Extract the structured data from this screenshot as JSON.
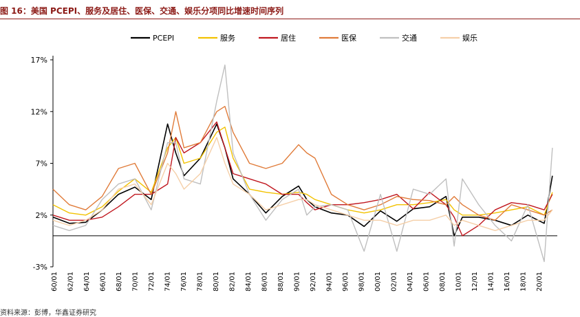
{
  "title": "图 16：美国 PCEPI、服务及居住、医保、交通、娱乐分项同比增速时间序列",
  "source": "资料来源：彭博，华鑫证券研究",
  "chart_data": {
    "type": "line",
    "title": "图 16：美国 PCEPI、服务及居住、医保、交通、娱乐分项同比增速时间序列",
    "xlabel": "",
    "ylabel": "",
    "x": [
      1960,
      1962,
      1964,
      1966,
      1968,
      1970,
      1972,
      1974,
      1975,
      1976,
      1978,
      1980,
      1981,
      1982,
      1984,
      1986,
      1988,
      1990,
      1991,
      1992,
      1994,
      1996,
      1998,
      2000,
      2002,
      2004,
      2006,
      2008,
      2009,
      2010,
      2012,
      2014,
      2016,
      2018,
      2020,
      2021
    ],
    "xlim": [
      1960,
      2021.6
    ],
    "ylim": [
      -3,
      17
    ],
    "yticks": [
      17,
      12,
      7,
      2,
      -3
    ],
    "ytick_labels": [
      "17%",
      "12%",
      "7%",
      "2%",
      "-3%"
    ],
    "xtick_labels": [
      "60/01",
      "62/01",
      "64/01",
      "66/01",
      "68/01",
      "70/01",
      "72/01",
      "74/01",
      "76/01",
      "78/01",
      "80/01",
      "82/01",
      "84/01",
      "86/01",
      "88/01",
      "90/01",
      "92/01",
      "94/01",
      "96/01",
      "98/01",
      "00/01",
      "02/01",
      "04/01",
      "06/01",
      "08/01",
      "10/01",
      "12/01",
      "14/01",
      "16/01",
      "18/01",
      "20/01"
    ],
    "zero_line": 0,
    "legend_position": "top-center",
    "series": [
      {
        "name": "PCEPI",
        "color": "#000000",
        "width": 1.6,
        "values": [
          1.8,
          1.2,
          1.3,
          2.5,
          4.0,
          4.7,
          3.5,
          10.8,
          8.0,
          5.8,
          7.5,
          10.8,
          8.5,
          5.5,
          4.0,
          2.2,
          3.8,
          4.8,
          3.5,
          2.8,
          2.2,
          2.0,
          0.9,
          2.4,
          1.4,
          2.6,
          2.8,
          3.8,
          0.0,
          1.8,
          1.8,
          1.5,
          1.0,
          2.0,
          1.2,
          5.8
        ]
      },
      {
        "name": "服务",
        "color": "#f2c200",
        "width": 1.4,
        "values": [
          3.0,
          2.2,
          2.0,
          2.8,
          4.3,
          5.5,
          4.2,
          8.5,
          9.5,
          7.0,
          7.5,
          10.0,
          10.5,
          7.5,
          4.5,
          4.2,
          4.0,
          4.2,
          4.0,
          3.5,
          3.0,
          2.5,
          2.2,
          2.5,
          3.0,
          3.0,
          3.2,
          3.5,
          2.5,
          2.0,
          2.0,
          2.2,
          2.5,
          2.8,
          2.0,
          4.2
        ]
      },
      {
        "name": "居住",
        "color": "#c0171f",
        "width": 1.4,
        "values": [
          2.0,
          1.5,
          1.5,
          1.8,
          2.8,
          4.0,
          4.0,
          5.0,
          9.5,
          8.0,
          9.0,
          11.0,
          8.5,
          6.0,
          5.5,
          5.0,
          4.0,
          4.0,
          3.2,
          2.5,
          3.0,
          3.0,
          3.2,
          3.5,
          4.0,
          2.6,
          4.2,
          3.0,
          1.8,
          0.0,
          1.0,
          2.5,
          3.2,
          3.0,
          2.5,
          4.0
        ]
      },
      {
        "name": "医保",
        "color": "#e07b39",
        "width": 1.4,
        "values": [
          4.5,
          3.0,
          2.5,
          3.8,
          6.5,
          7.0,
          4.0,
          8.0,
          12.0,
          8.5,
          9.0,
          12.0,
          12.5,
          10.0,
          7.0,
          6.5,
          7.0,
          8.8,
          8.0,
          7.5,
          4.0,
          3.0,
          2.5,
          3.0,
          3.8,
          3.5,
          3.4,
          3.0,
          3.8,
          3.0,
          2.0,
          1.5,
          3.0,
          2.5,
          2.0,
          2.5
        ]
      },
      {
        "name": "交通",
        "color": "#bfbfbf",
        "width": 1.4,
        "values": [
          1.0,
          0.5,
          1.0,
          3.5,
          5.0,
          5.5,
          2.5,
          9.0,
          9.0,
          5.5,
          5.0,
          13.0,
          16.5,
          8.0,
          4.0,
          1.5,
          3.5,
          4.5,
          2.0,
          2.8,
          3.0,
          2.5,
          -1.5,
          4.0,
          -1.5,
          4.5,
          4.0,
          5.5,
          -1.0,
          5.5,
          3.0,
          1.0,
          -0.5,
          3.0,
          -2.5,
          8.5
        ]
      },
      {
        "name": "娱乐",
        "color": "#f5cfa8",
        "width": 1.4,
        "values": [
          1.5,
          1.0,
          1.5,
          2.5,
          4.5,
          5.0,
          3.0,
          7.0,
          6.0,
          4.5,
          6.0,
          9.5,
          7.0,
          5.0,
          4.0,
          2.5,
          3.0,
          3.5,
          3.5,
          3.0,
          2.5,
          2.0,
          1.5,
          1.5,
          1.0,
          1.5,
          1.5,
          2.0,
          1.0,
          1.5,
          1.0,
          0.5,
          1.0,
          1.5,
          1.5,
          2.5
        ]
      }
    ]
  }
}
